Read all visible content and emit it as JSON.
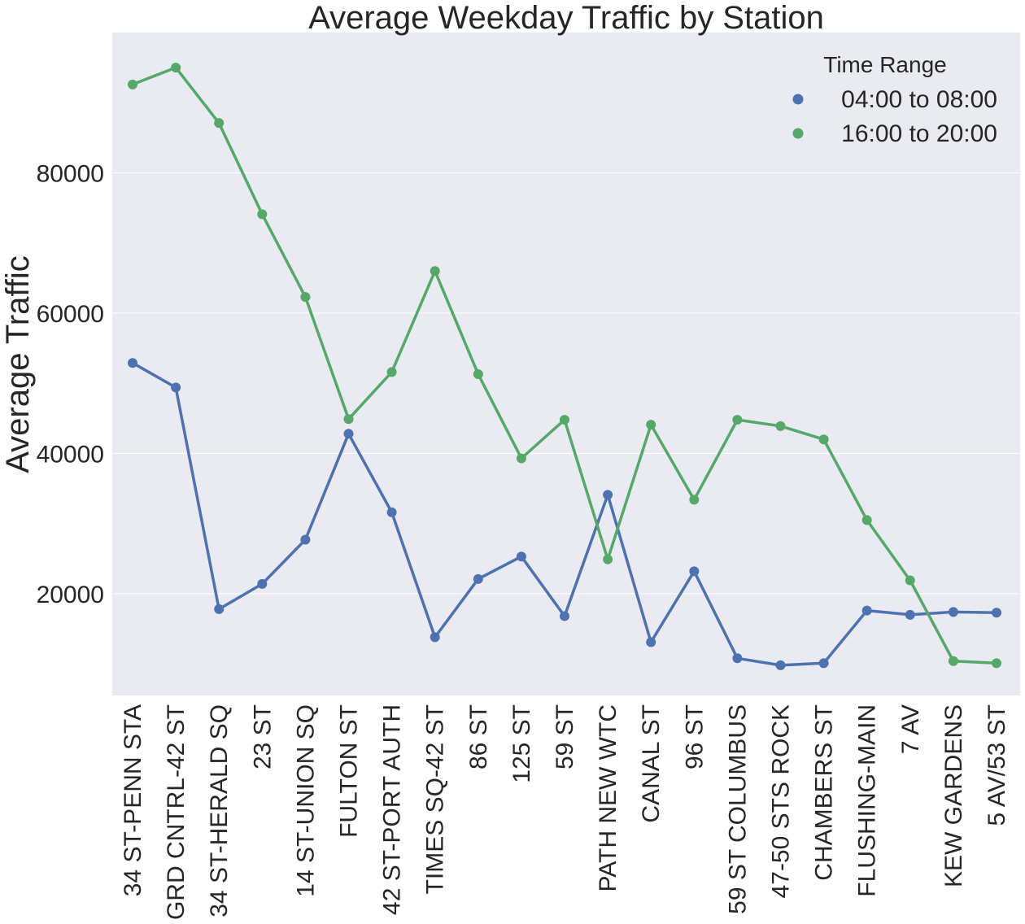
{
  "chart_data": {
    "type": "line",
    "title": "Average Weekday Traffic by Station",
    "xlabel": "",
    "ylabel": "Average Traffic",
    "categories": [
      "34 ST-PENN STA",
      "GRD CNTRL-42 ST",
      "34 ST-HERALD SQ",
      "23 ST",
      "14 ST-UNION SQ",
      "FULTON ST",
      "42 ST-PORT AUTH",
      "TIMES SQ-42 ST",
      "86 ST",
      "125 ST",
      "59 ST",
      "PATH NEW WTC",
      "CANAL ST",
      "96 ST",
      "59 ST COLUMBUS",
      "47-50 STS ROCK",
      "CHAMBERS ST",
      "FLUSHING-MAIN",
      "7 AV",
      "KEW GARDENS",
      "5 AV/53 ST"
    ],
    "ylim": [
      5500,
      100000
    ],
    "yticks": [
      20000,
      40000,
      60000,
      80000
    ],
    "grid": true,
    "legend": {
      "title": "Time Range",
      "position": "top-right"
    },
    "series": [
      {
        "name": "04:00 to 08:00",
        "color": "#4c72b0",
        "values": [
          52900,
          49400,
          17800,
          21400,
          27700,
          42800,
          31600,
          13800,
          22100,
          25300,
          16800,
          34100,
          13100,
          23200,
          10800,
          9800,
          10100,
          17600,
          17000,
          17400,
          17300
        ]
      },
      {
        "name": "16:00 to 20:00",
        "color": "#55a868",
        "values": [
          92600,
          95000,
          87100,
          74100,
          62300,
          44900,
          51600,
          66000,
          51300,
          39300,
          44800,
          24900,
          44100,
          33400,
          44800,
          43900,
          42000,
          30500,
          21900,
          10400,
          10100
        ]
      }
    ]
  }
}
